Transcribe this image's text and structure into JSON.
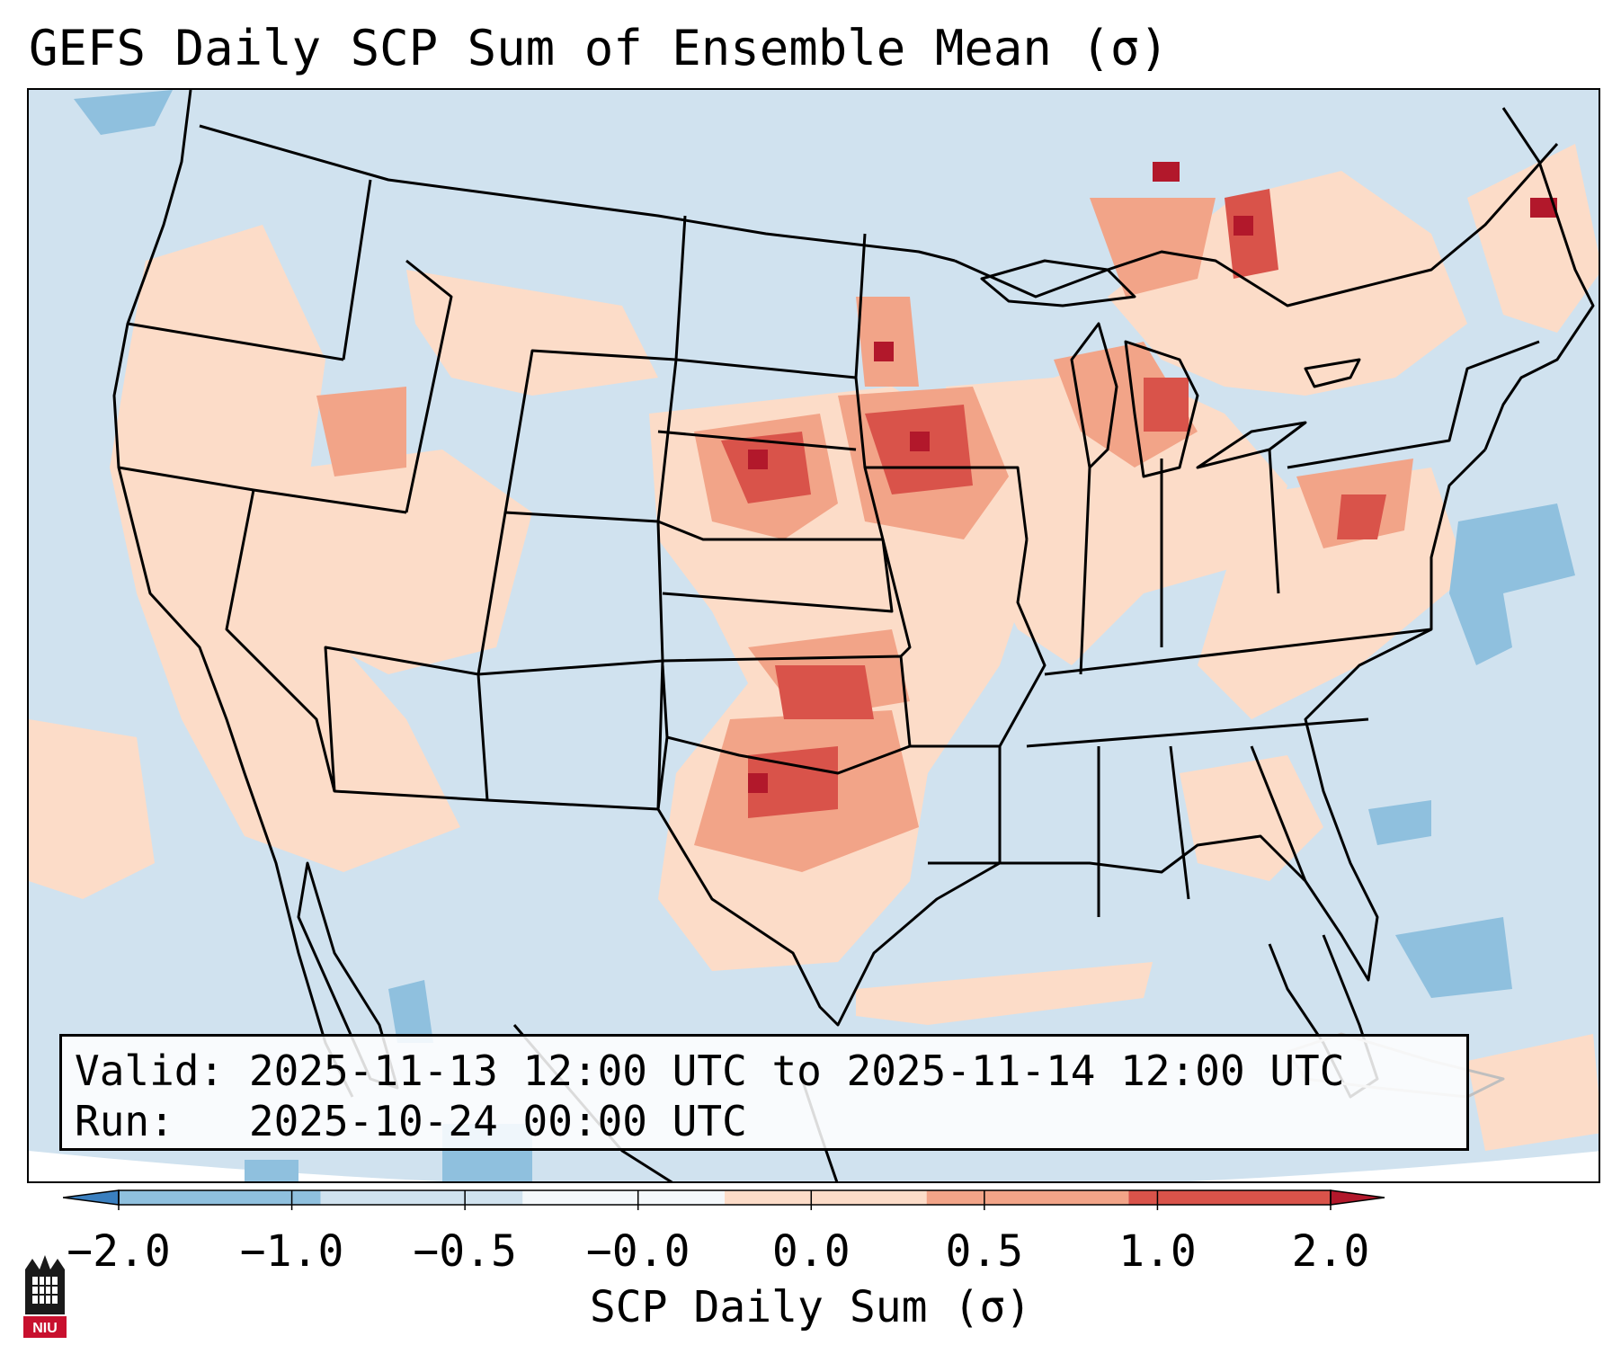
{
  "title": "GEFS Daily SCP Sum of Ensemble Mean (σ)",
  "info_box": {
    "valid_label": "Valid:",
    "valid_value": "2025-11-13 12:00 UTC to 2025-11-14 12:00 UTC",
    "run_label": "Run:",
    "run_value": "2025-10-24 00:00 UTC"
  },
  "colorbar": {
    "label": "SCP Daily Sum (σ)",
    "ticks": [
      "−2.0",
      "−1.0",
      "−0.5",
      "−0.0",
      "0.0",
      "0.5",
      "1.0",
      "2.0"
    ],
    "colors": [
      "#3a7fbf",
      "#8fc0de",
      "#d0e2ef",
      "#f4f8fb",
      "#fcdcc8",
      "#f2a488",
      "#d9534a",
      "#b2182b"
    ]
  },
  "logo": {
    "text": "NIU"
  },
  "map": {
    "background_color": "#d0e2ef",
    "anomaly_colors": {
      "neg2": "#8fc0de",
      "pos1": "#fcdcc8",
      "pos2": "#f2a488",
      "pos3": "#d9534a",
      "pos4": "#b2182b"
    }
  }
}
